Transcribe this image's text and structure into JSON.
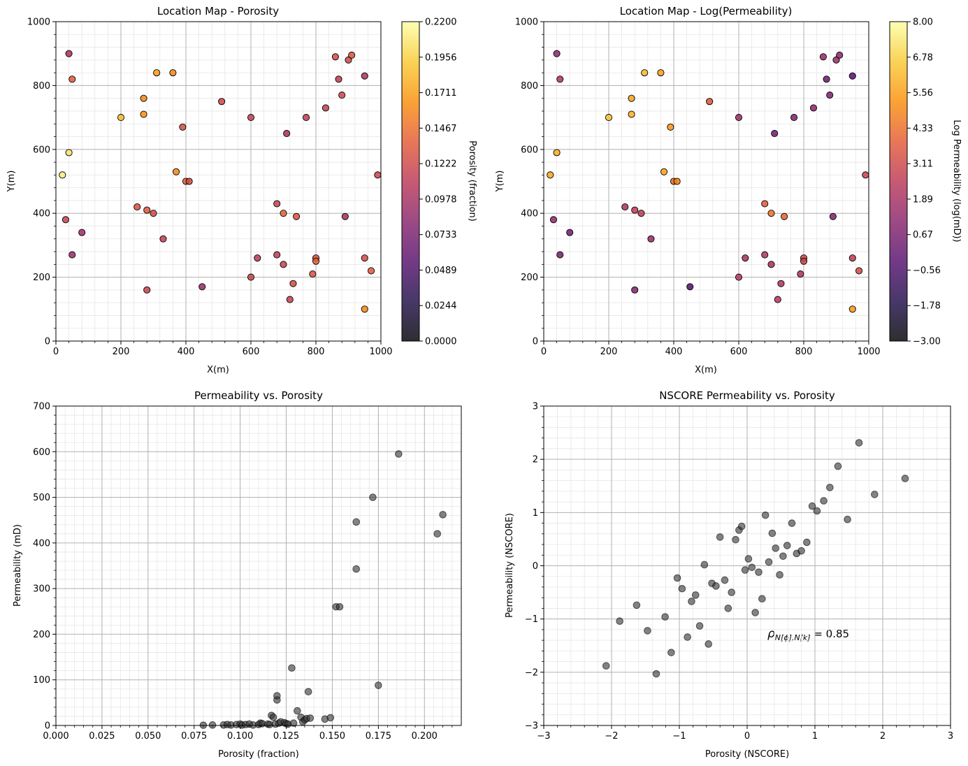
{
  "chart_data": [
    {
      "type": "scatter",
      "id": "porosity-map",
      "title": "Location Map - Porosity",
      "xlabel": "X(m)",
      "ylabel": "Y(m)",
      "xlim": [
        0,
        1000
      ],
      "ylim": [
        0,
        1000
      ],
      "xticks": [
        "0",
        "200",
        "400",
        "600",
        "800",
        "1000"
      ],
      "yticks": [
        "0",
        "200",
        "400",
        "600",
        "800",
        "1000"
      ],
      "grid": true,
      "colormap": "inferno",
      "colorbar": {
        "label": "Porosity (fraction)",
        "range": [
          0.0,
          0.22
        ],
        "ticks": [
          "0.0000",
          "0.0244",
          "0.0489",
          "0.0733",
          "0.0978",
          "0.1222",
          "0.1467",
          "0.1711",
          "0.1956",
          "0.2200"
        ]
      },
      "points": [
        {
          "x": 40,
          "y": 900,
          "v": 0.1
        },
        {
          "x": 50,
          "y": 820,
          "v": 0.135
        },
        {
          "x": 40,
          "y": 590,
          "v": 0.205
        },
        {
          "x": 20,
          "y": 520,
          "v": 0.21
        },
        {
          "x": 30,
          "y": 380,
          "v": 0.118
        },
        {
          "x": 80,
          "y": 340,
          "v": 0.095
        },
        {
          "x": 50,
          "y": 270,
          "v": 0.092
        },
        {
          "x": 200,
          "y": 700,
          "v": 0.185
        },
        {
          "x": 270,
          "y": 760,
          "v": 0.16
        },
        {
          "x": 270,
          "y": 710,
          "v": 0.165
        },
        {
          "x": 310,
          "y": 840,
          "v": 0.17
        },
        {
          "x": 360,
          "y": 840,
          "v": 0.16
        },
        {
          "x": 390,
          "y": 670,
          "v": 0.125
        },
        {
          "x": 370,
          "y": 530,
          "v": 0.16
        },
        {
          "x": 400,
          "y": 500,
          "v": 0.14
        },
        {
          "x": 410,
          "y": 500,
          "v": 0.125
        },
        {
          "x": 250,
          "y": 420,
          "v": 0.13
        },
        {
          "x": 280,
          "y": 410,
          "v": 0.135
        },
        {
          "x": 300,
          "y": 400,
          "v": 0.125
        },
        {
          "x": 330,
          "y": 320,
          "v": 0.115
        },
        {
          "x": 280,
          "y": 160,
          "v": 0.118
        },
        {
          "x": 450,
          "y": 170,
          "v": 0.09
        },
        {
          "x": 510,
          "y": 750,
          "v": 0.122
        },
        {
          "x": 600,
          "y": 700,
          "v": 0.115
        },
        {
          "x": 600,
          "y": 200,
          "v": 0.118
        },
        {
          "x": 620,
          "y": 260,
          "v": 0.11
        },
        {
          "x": 680,
          "y": 430,
          "v": 0.118
        },
        {
          "x": 700,
          "y": 400,
          "v": 0.14
        },
        {
          "x": 740,
          "y": 390,
          "v": 0.13
        },
        {
          "x": 710,
          "y": 650,
          "v": 0.098
        },
        {
          "x": 770,
          "y": 700,
          "v": 0.112
        },
        {
          "x": 830,
          "y": 730,
          "v": 0.115
        },
        {
          "x": 680,
          "y": 270,
          "v": 0.112
        },
        {
          "x": 700,
          "y": 240,
          "v": 0.118
        },
        {
          "x": 730,
          "y": 180,
          "v": 0.125
        },
        {
          "x": 720,
          "y": 130,
          "v": 0.118
        },
        {
          "x": 790,
          "y": 210,
          "v": 0.128
        },
        {
          "x": 800,
          "y": 260,
          "v": 0.13
        },
        {
          "x": 800,
          "y": 250,
          "v": 0.14
        },
        {
          "x": 860,
          "y": 890,
          "v": 0.125
        },
        {
          "x": 870,
          "y": 820,
          "v": 0.112
        },
        {
          "x": 880,
          "y": 770,
          "v": 0.122
        },
        {
          "x": 900,
          "y": 880,
          "v": 0.122
        },
        {
          "x": 910,
          "y": 895,
          "v": 0.13
        },
        {
          "x": 950,
          "y": 830,
          "v": 0.1
        },
        {
          "x": 890,
          "y": 390,
          "v": 0.098
        },
        {
          "x": 950,
          "y": 260,
          "v": 0.125
        },
        {
          "x": 970,
          "y": 220,
          "v": 0.135
        },
        {
          "x": 950,
          "y": 100,
          "v": 0.16
        },
        {
          "x": 990,
          "y": 520,
          "v": 0.12
        }
      ]
    },
    {
      "type": "scatter",
      "id": "permeability-map",
      "title": "Location Map - Log(Permeability)",
      "xlabel": "X(m)",
      "ylabel": "Y(m)",
      "xlim": [
        0,
        1000
      ],
      "ylim": [
        0,
        1000
      ],
      "xticks": [
        "0",
        "200",
        "400",
        "600",
        "800",
        "1000"
      ],
      "yticks": [
        "0",
        "200",
        "400",
        "600",
        "800",
        "1000"
      ],
      "grid": true,
      "colormap": "inferno",
      "colorbar": {
        "label": "Log Permeability (log(mD))",
        "range": [
          -3.0,
          8.0
        ],
        "ticks": [
          "−3.00",
          "−1.78",
          "−0.56",
          "0.67",
          "1.89",
          "3.11",
          "4.33",
          "5.56",
          "6.78",
          "8.00"
        ]
      },
      "points": [
        {
          "x": 40,
          "y": 900,
          "v": 1.2
        },
        {
          "x": 50,
          "y": 820,
          "v": 2.2
        },
        {
          "x": 40,
          "y": 590,
          "v": 5.9
        },
        {
          "x": 20,
          "y": 520,
          "v": 5.8
        },
        {
          "x": 30,
          "y": 380,
          "v": 1.3
        },
        {
          "x": 80,
          "y": 340,
          "v": 0.5
        },
        {
          "x": 50,
          "y": 270,
          "v": 0.6
        },
        {
          "x": 200,
          "y": 700,
          "v": 6.4
        },
        {
          "x": 270,
          "y": 760,
          "v": 5.7
        },
        {
          "x": 270,
          "y": 710,
          "v": 6.0
        },
        {
          "x": 310,
          "y": 840,
          "v": 6.2
        },
        {
          "x": 360,
          "y": 840,
          "v": 5.6
        },
        {
          "x": 390,
          "y": 670,
          "v": 5.3
        },
        {
          "x": 370,
          "y": 530,
          "v": 5.6
        },
        {
          "x": 400,
          "y": 500,
          "v": 4.3
        },
        {
          "x": 410,
          "y": 500,
          "v": 5.0
        },
        {
          "x": 250,
          "y": 420,
          "v": 2.0
        },
        {
          "x": 280,
          "y": 410,
          "v": 2.7
        },
        {
          "x": 300,
          "y": 400,
          "v": 2.6
        },
        {
          "x": 330,
          "y": 320,
          "v": 1.5
        },
        {
          "x": 280,
          "y": 160,
          "v": 1.0
        },
        {
          "x": 450,
          "y": 170,
          "v": -0.5
        },
        {
          "x": 510,
          "y": 750,
          "v": 3.6
        },
        {
          "x": 600,
          "y": 700,
          "v": 1.6
        },
        {
          "x": 600,
          "y": 200,
          "v": 2.4
        },
        {
          "x": 620,
          "y": 260,
          "v": 1.9
        },
        {
          "x": 680,
          "y": 430,
          "v": 3.8
        },
        {
          "x": 700,
          "y": 400,
          "v": 4.5
        },
        {
          "x": 740,
          "y": 390,
          "v": 4.0
        },
        {
          "x": 710,
          "y": 650,
          "v": 0.4
        },
        {
          "x": 770,
          "y": 700,
          "v": 0.9
        },
        {
          "x": 830,
          "y": 730,
          "v": 1.2
        },
        {
          "x": 680,
          "y": 270,
          "v": 2.3
        },
        {
          "x": 700,
          "y": 240,
          "v": 2.0
        },
        {
          "x": 730,
          "y": 180,
          "v": 2.2
        },
        {
          "x": 720,
          "y": 130,
          "v": 2.4
        },
        {
          "x": 790,
          "y": 210,
          "v": 2.0
        },
        {
          "x": 800,
          "y": 260,
          "v": 3.2
        },
        {
          "x": 800,
          "y": 250,
          "v": 3.0
        },
        {
          "x": 860,
          "y": 890,
          "v": 1.4
        },
        {
          "x": 870,
          "y": 820,
          "v": 0.3
        },
        {
          "x": 880,
          "y": 770,
          "v": 0.8
        },
        {
          "x": 900,
          "y": 880,
          "v": 1.6
        },
        {
          "x": 910,
          "y": 895,
          "v": 1.2
        },
        {
          "x": 950,
          "y": 830,
          "v": -0.3
        },
        {
          "x": 890,
          "y": 390,
          "v": 1.0
        },
        {
          "x": 950,
          "y": 260,
          "v": 2.5
        },
        {
          "x": 970,
          "y": 220,
          "v": 3.2
        },
        {
          "x": 950,
          "y": 100,
          "v": 5.4
        },
        {
          "x": 990,
          "y": 520,
          "v": 2.9
        }
      ]
    },
    {
      "type": "scatter",
      "id": "perm-vs-porosity",
      "title": "Permeability vs. Porosity",
      "xlabel": "Porosity (fraction)",
      "ylabel": "Permeability (mD)",
      "xlim": [
        0.0,
        0.22
      ],
      "ylim": [
        0,
        700
      ],
      "xticks": [
        "0.000",
        "0.025",
        "0.050",
        "0.075",
        "0.100",
        "0.125",
        "0.150",
        "0.175",
        "0.200"
      ],
      "yticks": [
        "0",
        "100",
        "200",
        "300",
        "400",
        "500",
        "600",
        "700"
      ],
      "grid": true,
      "points": [
        {
          "x": 0.08,
          "y": 0.5
        },
        {
          "x": 0.085,
          "y": 1
        },
        {
          "x": 0.091,
          "y": 1
        },
        {
          "x": 0.093,
          "y": 2
        },
        {
          "x": 0.095,
          "y": 1
        },
        {
          "x": 0.098,
          "y": 2
        },
        {
          "x": 0.1,
          "y": 3
        },
        {
          "x": 0.101,
          "y": 1
        },
        {
          "x": 0.103,
          "y": 2
        },
        {
          "x": 0.105,
          "y": 3
        },
        {
          "x": 0.107,
          "y": 1
        },
        {
          "x": 0.11,
          "y": 2
        },
        {
          "x": 0.111,
          "y": 5
        },
        {
          "x": 0.112,
          "y": 4
        },
        {
          "x": 0.115,
          "y": 3
        },
        {
          "x": 0.116,
          "y": 2
        },
        {
          "x": 0.117,
          "y": 22
        },
        {
          "x": 0.118,
          "y": 18
        },
        {
          "x": 0.119,
          "y": 3
        },
        {
          "x": 0.12,
          "y": 56
        },
        {
          "x": 0.12,
          "y": 65
        },
        {
          "x": 0.121,
          "y": 5
        },
        {
          "x": 0.122,
          "y": 8
        },
        {
          "x": 0.124,
          "y": 6
        },
        {
          "x": 0.125,
          "y": 4
        },
        {
          "x": 0.126,
          "y": 3
        },
        {
          "x": 0.128,
          "y": 126
        },
        {
          "x": 0.129,
          "y": 5
        },
        {
          "x": 0.131,
          "y": 32
        },
        {
          "x": 0.133,
          "y": 18
        },
        {
          "x": 0.134,
          "y": 8
        },
        {
          "x": 0.135,
          "y": 12
        },
        {
          "x": 0.136,
          "y": 15
        },
        {
          "x": 0.137,
          "y": 74
        },
        {
          "x": 0.138,
          "y": 16
        },
        {
          "x": 0.146,
          "y": 14
        },
        {
          "x": 0.149,
          "y": 17
        },
        {
          "x": 0.152,
          "y": 260
        },
        {
          "x": 0.154,
          "y": 260
        },
        {
          "x": 0.163,
          "y": 343
        },
        {
          "x": 0.163,
          "y": 446
        },
        {
          "x": 0.172,
          "y": 500
        },
        {
          "x": 0.175,
          "y": 88
        },
        {
          "x": 0.186,
          "y": 595
        },
        {
          "x": 0.207,
          "y": 420
        },
        {
          "x": 0.21,
          "y": 462
        }
      ]
    },
    {
      "type": "scatter",
      "id": "nscore-perm-vs-porosity",
      "title": "NSCORE Permeability vs. Porosity",
      "xlabel": "Porosity (NSCORE)",
      "ylabel": "Permeability (NSCORE)",
      "xlim": [
        -3,
        3
      ],
      "ylim": [
        -3,
        3
      ],
      "xticks": [
        "−3",
        "−2",
        "−1",
        "0",
        "1",
        "2",
        "3"
      ],
      "yticks": [
        "−3",
        "−2",
        "−1",
        "0",
        "1",
        "2",
        "3"
      ],
      "grid": true,
      "annotation": {
        "symbol": "ρ",
        "subscript": "N[ϕ],N[k]",
        "text": " = 0.85"
      },
      "points": [
        {
          "x": -2.08,
          "y": -1.88
        },
        {
          "x": -1.88,
          "y": -1.04
        },
        {
          "x": -1.63,
          "y": -0.74
        },
        {
          "x": -1.47,
          "y": -1.22
        },
        {
          "x": -1.34,
          "y": -2.03
        },
        {
          "x": -1.21,
          "y": -0.96
        },
        {
          "x": -1.12,
          "y": -1.63
        },
        {
          "x": -1.03,
          "y": -0.23
        },
        {
          "x": -0.96,
          "y": -0.43
        },
        {
          "x": -0.88,
          "y": -1.34
        },
        {
          "x": -0.82,
          "y": -0.67
        },
        {
          "x": -0.76,
          "y": -0.55
        },
        {
          "x": -0.7,
          "y": -1.13
        },
        {
          "x": -0.63,
          "y": 0.02
        },
        {
          "x": -0.57,
          "y": -1.47
        },
        {
          "x": -0.52,
          "y": -0.33
        },
        {
          "x": -0.46,
          "y": -0.38
        },
        {
          "x": -0.4,
          "y": 0.54
        },
        {
          "x": -0.33,
          "y": -0.27
        },
        {
          "x": -0.28,
          "y": -0.8
        },
        {
          "x": -0.23,
          "y": -0.5
        },
        {
          "x": -0.17,
          "y": 0.49
        },
        {
          "x": -0.12,
          "y": 0.67
        },
        {
          "x": -0.08,
          "y": 0.74
        },
        {
          "x": -0.03,
          "y": -0.08
        },
        {
          "x": 0.02,
          "y": 0.13
        },
        {
          "x": 0.07,
          "y": -0.03
        },
        {
          "x": 0.12,
          "y": -0.88
        },
        {
          "x": 0.17,
          "y": -0.12
        },
        {
          "x": 0.22,
          "y": -0.62
        },
        {
          "x": 0.27,
          "y": 0.95
        },
        {
          "x": 0.32,
          "y": 0.07
        },
        {
          "x": 0.37,
          "y": 0.61
        },
        {
          "x": 0.42,
          "y": 0.33
        },
        {
          "x": 0.48,
          "y": -0.17
        },
        {
          "x": 0.53,
          "y": 0.18
        },
        {
          "x": 0.59,
          "y": 0.38
        },
        {
          "x": 0.66,
          "y": 0.8
        },
        {
          "x": 0.73,
          "y": 0.23
        },
        {
          "x": 0.8,
          "y": 0.28
        },
        {
          "x": 0.88,
          "y": 0.44
        },
        {
          "x": 0.96,
          "y": 1.12
        },
        {
          "x": 1.03,
          "y": 1.03
        },
        {
          "x": 1.13,
          "y": 1.22
        },
        {
          "x": 1.22,
          "y": 1.47
        },
        {
          "x": 1.34,
          "y": 1.87
        },
        {
          "x": 1.48,
          "y": 0.87
        },
        {
          "x": 1.65,
          "y": 2.31
        },
        {
          "x": 1.88,
          "y": 1.34
        },
        {
          "x": 2.33,
          "y": 1.64
        }
      ]
    }
  ]
}
